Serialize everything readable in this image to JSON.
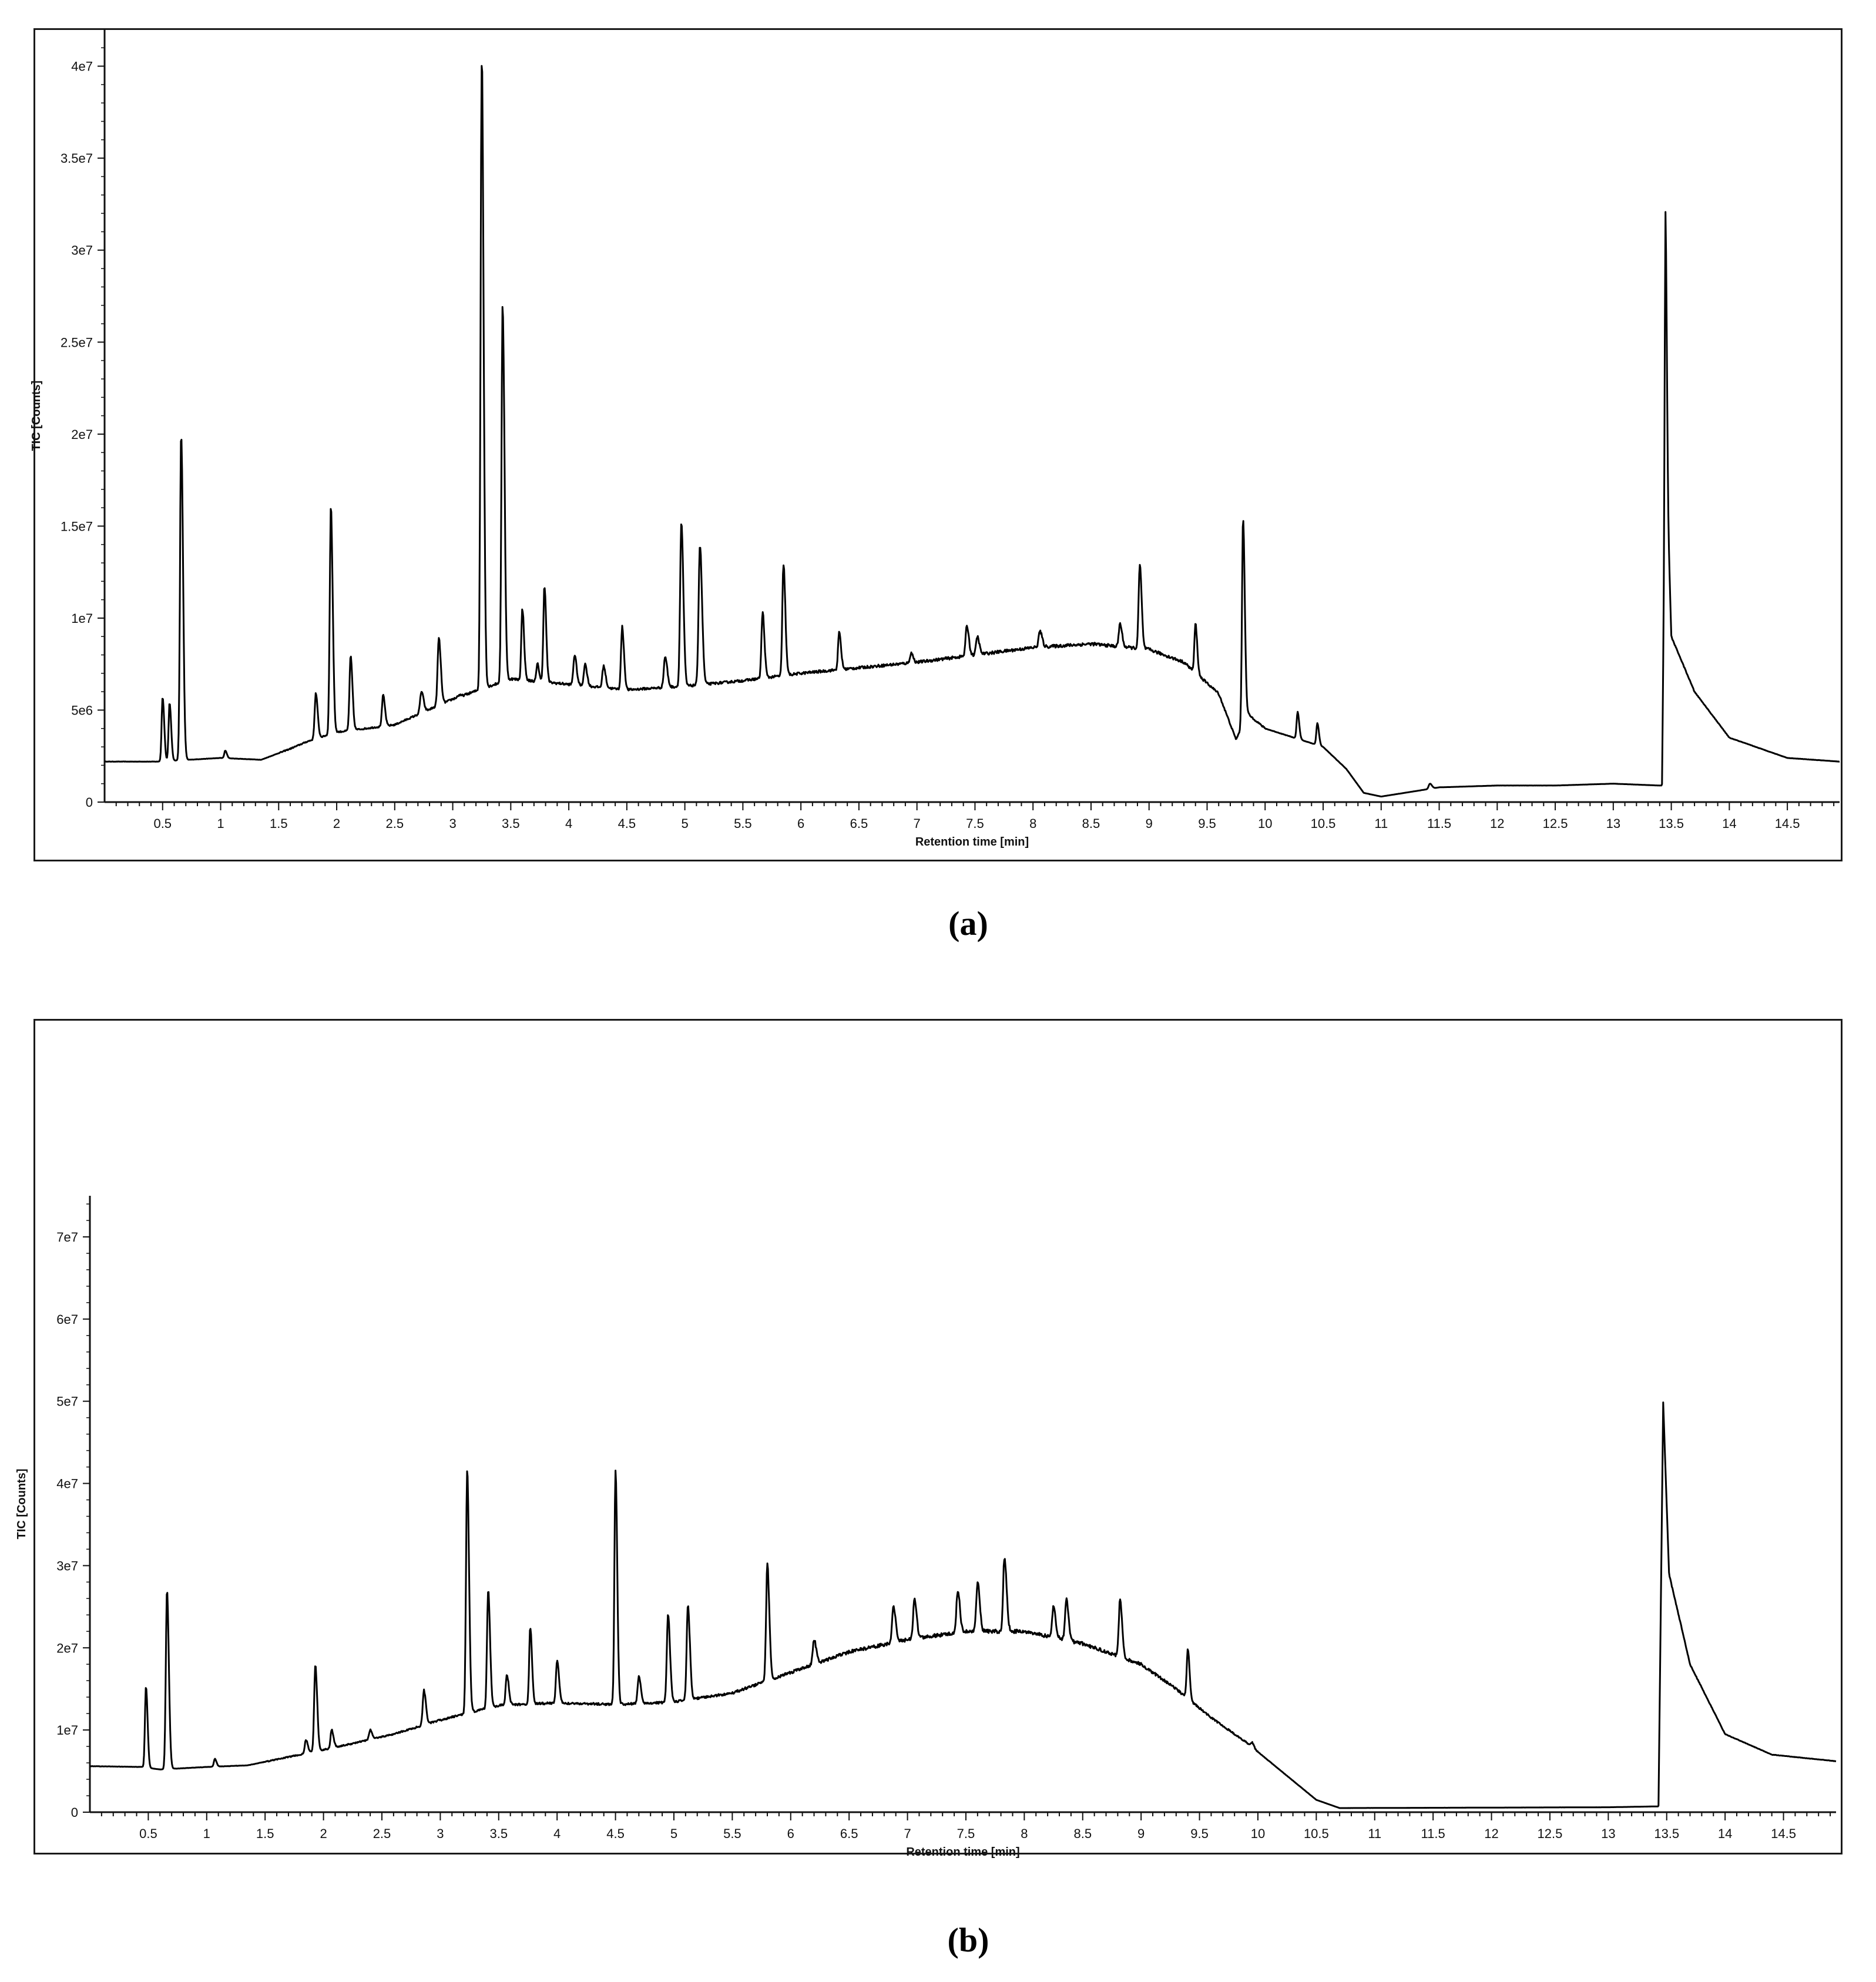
{
  "captions": {
    "a": "(a)",
    "b": "(b)"
  },
  "chart_data": [
    {
      "type": "line",
      "panel": "a",
      "xlabel": "Retention time [min]",
      "ylabel": "TIC [Counts]",
      "xlim": [
        0,
        14.95
      ],
      "ylim": [
        0,
        42000000
      ],
      "x_ticks": [
        0.5,
        1,
        1.5,
        2,
        2.5,
        3,
        3.5,
        4,
        4.5,
        5,
        5.5,
        6,
        6.5,
        7,
        7.5,
        8,
        8.5,
        9,
        9.5,
        10,
        10.5,
        11,
        11.5,
        12,
        12.5,
        13,
        13.5,
        14,
        14.5
      ],
      "x_tick_labels": [
        "0.5",
        "1",
        "1.5",
        "2",
        "2.5",
        "3",
        "3.5",
        "4",
        "4.5",
        "5",
        "5.5",
        "6",
        "6.5",
        "7",
        "7.5",
        "8",
        "8.5",
        "9",
        "9.5",
        "10",
        "10.5",
        "11",
        "11.5",
        "12",
        "12.5",
        "13",
        "13.5",
        "14",
        "14.5"
      ],
      "y_ticks": [
        0,
        5000000,
        10000000,
        15000000,
        20000000,
        25000000,
        30000000,
        35000000,
        40000000
      ],
      "y_tick_labels": [
        "0",
        "5e6",
        "1e7",
        "1.5e7",
        "2e7",
        "2.5e7",
        "3e7",
        "3.5e7",
        "4e7"
      ],
      "baseline": [
        [
          0,
          2200000
        ],
        [
          0.45,
          2200000
        ],
        [
          1.0,
          2400000
        ],
        [
          1.35,
          2300000
        ],
        [
          1.6,
          2900000
        ],
        [
          1.75,
          3300000
        ],
        [
          2.0,
          3800000
        ],
        [
          2.5,
          4200000
        ],
        [
          3.0,
          5600000
        ],
        [
          3.5,
          6700000
        ],
        [
          4.0,
          6400000
        ],
        [
          4.5,
          6100000
        ],
        [
          5.0,
          6300000
        ],
        [
          5.5,
          6600000
        ],
        [
          6.0,
          7000000
        ],
        [
          6.5,
          7300000
        ],
        [
          7.0,
          7600000
        ],
        [
          7.5,
          8000000
        ],
        [
          8.0,
          8400000
        ],
        [
          8.5,
          8600000
        ],
        [
          9.0,
          8300000
        ],
        [
          9.3,
          7600000
        ],
        [
          9.6,
          5900000
        ],
        [
          9.75,
          3400000
        ],
        [
          9.85,
          4800000
        ],
        [
          10.0,
          4000000
        ],
        [
          10.2,
          3600000
        ],
        [
          10.5,
          3000000
        ],
        [
          10.7,
          1800000
        ],
        [
          10.85,
          500000
        ],
        [
          11.0,
          300000
        ],
        [
          11.5,
          800000
        ],
        [
          12.0,
          900000
        ],
        [
          12.5,
          900000
        ],
        [
          13.0,
          1000000
        ],
        [
          13.4,
          900000
        ],
        [
          13.42,
          900000
        ],
        [
          13.45,
          20000000
        ],
        [
          13.5,
          9000000
        ],
        [
          13.7,
          6000000
        ],
        [
          14.0,
          3500000
        ],
        [
          14.5,
          2400000
        ],
        [
          14.95,
          2200000
        ]
      ],
      "peaks": [
        [
          0.5,
          5700000,
          0.012
        ],
        [
          0.56,
          5400000,
          0.012
        ],
        [
          0.66,
          20000000,
          0.014
        ],
        [
          1.04,
          2800000,
          0.012
        ],
        [
          1.82,
          5900000,
          0.014
        ],
        [
          1.95,
          16000000,
          0.014
        ],
        [
          2.12,
          7900000,
          0.014
        ],
        [
          2.4,
          5800000,
          0.014
        ],
        [
          2.73,
          6000000,
          0.016
        ],
        [
          2.88,
          8900000,
          0.015
        ],
        [
          3.05,
          5800000,
          0.014
        ],
        [
          3.25,
          40500000,
          0.014
        ],
        [
          3.43,
          27000000,
          0.014
        ],
        [
          3.6,
          10500000,
          0.013
        ],
        [
          3.73,
          7500000,
          0.013
        ],
        [
          3.79,
          11800000,
          0.013
        ],
        [
          4.05,
          8000000,
          0.015
        ],
        [
          4.14,
          7500000,
          0.015
        ],
        [
          4.3,
          7400000,
          0.015
        ],
        [
          4.46,
          9500000,
          0.014
        ],
        [
          4.83,
          7900000,
          0.016
        ],
        [
          4.97,
          15200000,
          0.015
        ],
        [
          5.13,
          14000000,
          0.016
        ],
        [
          5.67,
          10300000,
          0.014
        ],
        [
          5.85,
          12900000,
          0.014
        ],
        [
          6.33,
          9200000,
          0.014
        ],
        [
          6.95,
          8100000,
          0.015
        ],
        [
          7.43,
          9600000,
          0.015
        ],
        [
          7.52,
          9000000,
          0.015
        ],
        [
          8.06,
          9300000,
          0.016
        ],
        [
          8.75,
          9700000,
          0.015
        ],
        [
          8.92,
          12900000,
          0.014
        ],
        [
          9.4,
          9700000,
          0.013
        ],
        [
          9.81,
          15500000,
          0.013
        ],
        [
          10.28,
          4900000,
          0.012
        ],
        [
          10.45,
          4300000,
          0.012
        ],
        [
          11.42,
          1000000,
          0.015
        ],
        [
          13.45,
          32000000,
          0.01
        ]
      ]
    },
    {
      "type": "line",
      "panel": "b",
      "xlabel": "Retention time [min]",
      "ylabel": "TIC [Counts]",
      "xlim": [
        0,
        14.95
      ],
      "ylim": [
        0,
        75000000
      ],
      "x_ticks": [
        0.5,
        1,
        1.5,
        2,
        2.5,
        3,
        3.5,
        4,
        4.5,
        5,
        5.5,
        6,
        6.5,
        7,
        7.5,
        8,
        8.5,
        9,
        9.5,
        10,
        10.5,
        11,
        11.5,
        12,
        12.5,
        13,
        13.5,
        14,
        14.5
      ],
      "x_tick_labels": [
        "0.5",
        "1",
        "1.5",
        "2",
        "2.5",
        "3",
        "3.5",
        "4",
        "4.5",
        "5",
        "5.5",
        "6",
        "6.5",
        "7",
        "7.5",
        "8",
        "8.5",
        "9",
        "9.5",
        "10",
        "10.5",
        "11",
        "11.5",
        "12",
        "12.5",
        "13",
        "13.5",
        "14",
        "14.5"
      ],
      "y_ticks": [
        0,
        10000000,
        20000000,
        30000000,
        40000000,
        50000000,
        60000000,
        70000000
      ],
      "y_tick_labels": [
        "0",
        "1e7",
        "2e7",
        "3e7",
        "4e7",
        "5e7",
        "6e7",
        "7e7"
      ],
      "baseline": [
        [
          0,
          5600000
        ],
        [
          0.45,
          5500000
        ],
        [
          0.6,
          5200000
        ],
        [
          1.0,
          5500000
        ],
        [
          1.35,
          5700000
        ],
        [
          1.8,
          7000000
        ],
        [
          2.2,
          8200000
        ],
        [
          2.6,
          9500000
        ],
        [
          3.0,
          11200000
        ],
        [
          3.5,
          13000000
        ],
        [
          4.0,
          13300000
        ],
        [
          4.5,
          13100000
        ],
        [
          5.0,
          13400000
        ],
        [
          5.5,
          14500000
        ],
        [
          6.0,
          17000000
        ],
        [
          6.5,
          19500000
        ],
        [
          7.0,
          21000000
        ],
        [
          7.5,
          22000000
        ],
        [
          8.0,
          22000000
        ],
        [
          8.5,
          20500000
        ],
        [
          9.0,
          18000000
        ],
        [
          9.3,
          15000000
        ],
        [
          9.6,
          11500000
        ],
        [
          9.9,
          8500000
        ],
        [
          10.2,
          5000000
        ],
        [
          10.5,
          1500000
        ],
        [
          10.7,
          500000
        ],
        [
          13.0,
          600000
        ],
        [
          13.4,
          700000
        ],
        [
          13.43,
          700000
        ],
        [
          13.47,
          50000000
        ],
        [
          13.52,
          29000000
        ],
        [
          13.7,
          18000000
        ],
        [
          14.0,
          9500000
        ],
        [
          14.4,
          7000000
        ],
        [
          14.95,
          6200000
        ]
      ],
      "peaks": [
        [
          0.48,
          15300000,
          0.012
        ],
        [
          0.66,
          27000000,
          0.014
        ],
        [
          1.07,
          6500000,
          0.012
        ],
        [
          1.85,
          8800000,
          0.014
        ],
        [
          1.93,
          17800000,
          0.014
        ],
        [
          2.07,
          10000000,
          0.014
        ],
        [
          2.4,
          10000000,
          0.014
        ],
        [
          2.86,
          14800000,
          0.015
        ],
        [
          3.23,
          41800000,
          0.014
        ],
        [
          3.41,
          27000000,
          0.014
        ],
        [
          3.57,
          16800000,
          0.014
        ],
        [
          3.77,
          22500000,
          0.013
        ],
        [
          4.0,
          18500000,
          0.014
        ],
        [
          4.5,
          41700000,
          0.013
        ],
        [
          4.7,
          16500000,
          0.015
        ],
        [
          4.95,
          24000000,
          0.015
        ],
        [
          5.12,
          25000000,
          0.015
        ],
        [
          5.8,
          30000000,
          0.015
        ],
        [
          6.2,
          21000000,
          0.016
        ],
        [
          6.88,
          25000000,
          0.016
        ],
        [
          7.06,
          26000000,
          0.016
        ],
        [
          7.43,
          27000000,
          0.016
        ],
        [
          7.6,
          28000000,
          0.016
        ],
        [
          7.83,
          31000000,
          0.016
        ],
        [
          8.25,
          25000000,
          0.016
        ],
        [
          8.36,
          26000000,
          0.016
        ],
        [
          8.82,
          26000000,
          0.015
        ],
        [
          9.4,
          20000000,
          0.013
        ],
        [
          9.95,
          8500000,
          0.014
        ],
        [
          14.12,
          8500000,
          0.012
        ]
      ]
    }
  ]
}
